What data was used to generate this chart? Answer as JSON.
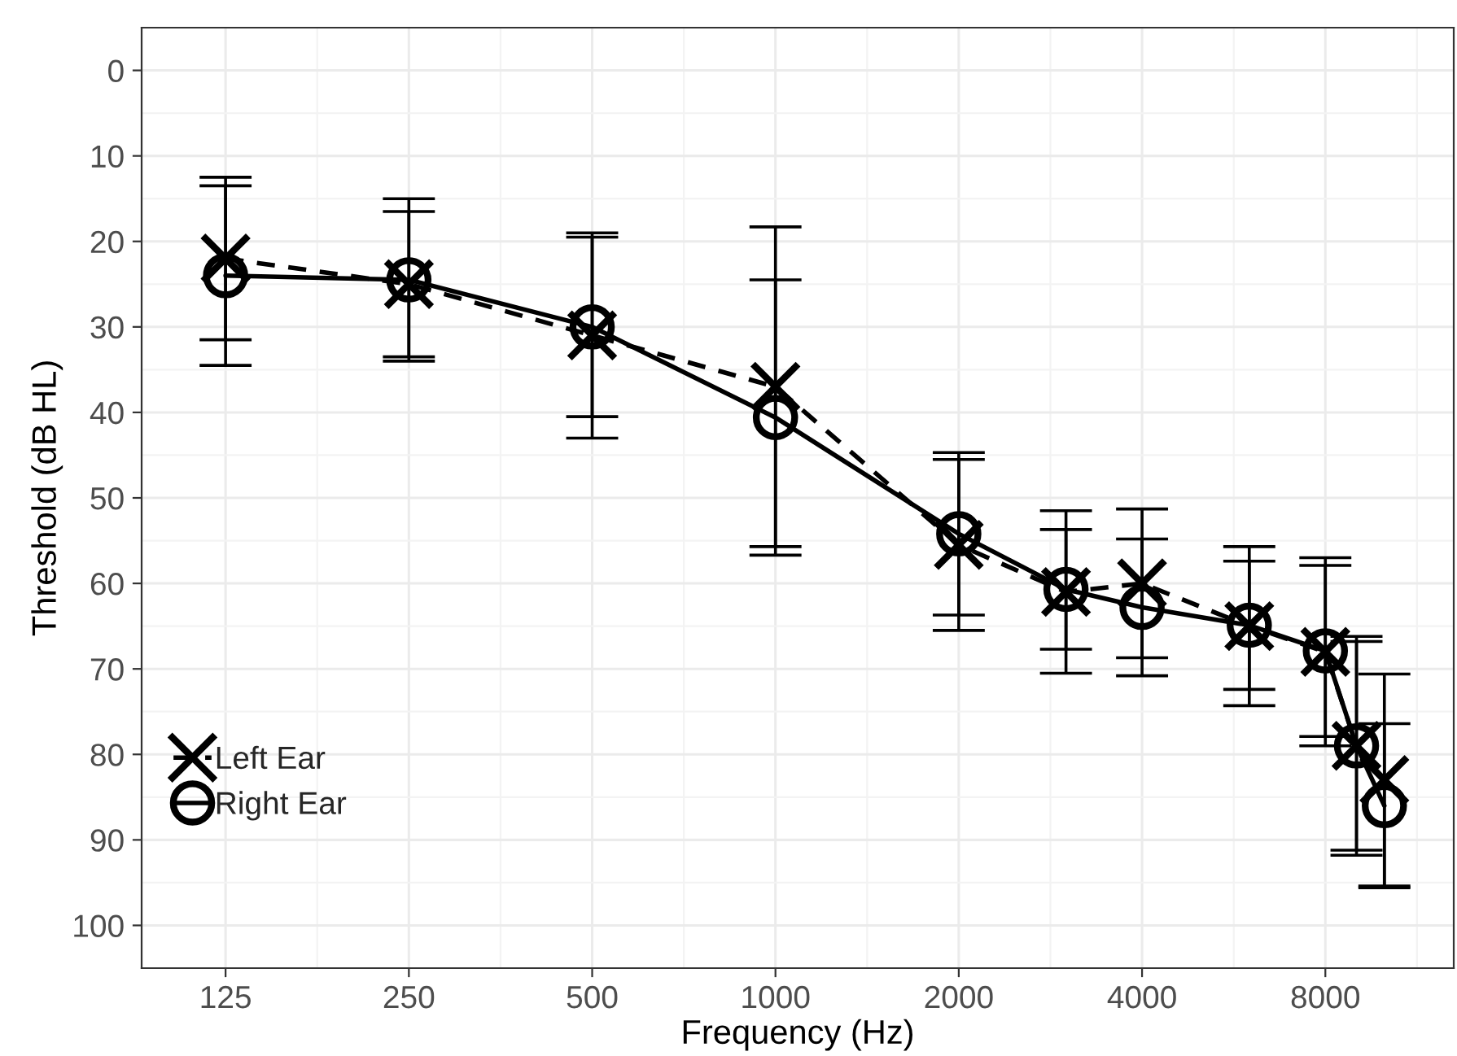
{
  "chart_data": {
    "type": "line",
    "xlabel": "Frequency (Hz)",
    "ylabel": "Threshold (dB HL)",
    "x": [
      125,
      250,
      500,
      1000,
      2000,
      3000,
      4000,
      6000,
      8000,
      9000,
      10000
    ],
    "series": [
      {
        "name": "Left Ear",
        "color": "#000000",
        "marker": "cross",
        "line_style": "dashed",
        "values": [
          22,
          25,
          31,
          37,
          55.5,
          61,
          60,
          65,
          68,
          79,
          83
        ],
        "errors": [
          9.5,
          8.5,
          12,
          18.7,
          10,
          9.5,
          8.7,
          9.3,
          11,
          12.8,
          12.4
        ]
      },
      {
        "name": "Right Ear",
        "color": "#000000",
        "marker": "circle",
        "line_style": "solid",
        "values": [
          24,
          24.5,
          30,
          40.6,
          54.2,
          60.7,
          62.8,
          64.9,
          67.9,
          79,
          86
        ],
        "errors": [
          10.5,
          9.5,
          10.5,
          16.1,
          9.5,
          7,
          8,
          7.5,
          10,
          12.2,
          9.6
        ]
      }
    ],
    "log": "x",
    "xlim": [
      91,
      13000
    ],
    "xticks": [
      125,
      250,
      500,
      1000,
      2000,
      4000,
      8000
    ],
    "ylim": [
      105,
      -5
    ],
    "yticks": [
      0,
      10,
      20,
      30,
      40,
      50,
      60,
      70,
      80,
      90,
      100
    ],
    "grid": true,
    "legend": "bottom left"
  }
}
